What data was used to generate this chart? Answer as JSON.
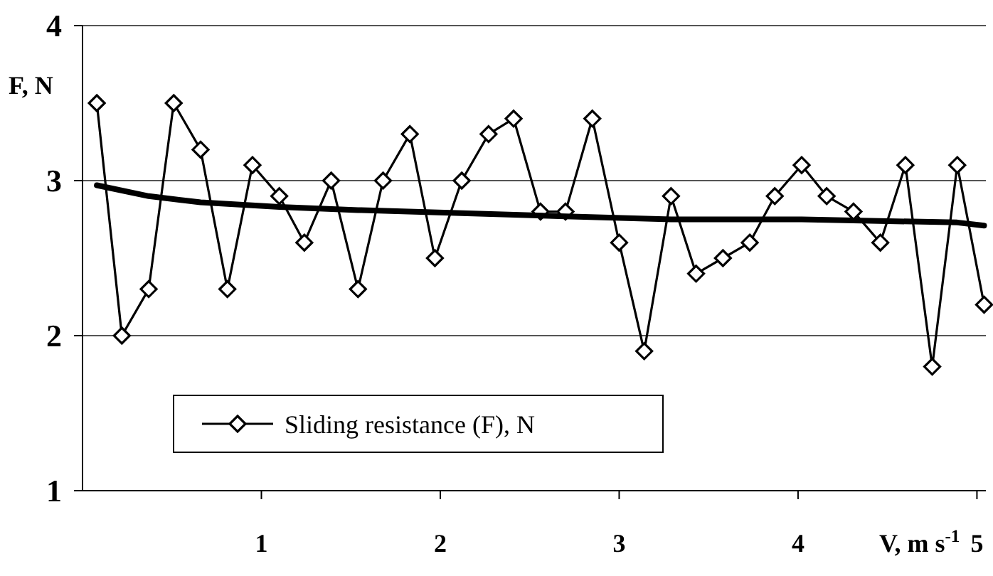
{
  "chart_data": {
    "type": "line",
    "ylabel": "F, N",
    "xlabel": "V, m s$^{-1}$",
    "xlim": [
      0,
      5.05
    ],
    "xticks": [
      1,
      2,
      3,
      4,
      5
    ],
    "ylim": [
      1,
      4
    ],
    "yticks": [
      1,
      2,
      3,
      4
    ],
    "grid": "y",
    "legend": "bottom left",
    "series": [
      {
        "name": "Sliding resistance (F), N",
        "color": "#000000",
        "marker": "diamond",
        "x": [
          0.08,
          0.22,
          0.37,
          0.51,
          0.66,
          0.81,
          0.95,
          1.1,
          1.24,
          1.39,
          1.54,
          1.68,
          1.83,
          1.97,
          2.12,
          2.27,
          2.41,
          2.56,
          2.7,
          2.85,
          3.0,
          3.14,
          3.29,
          3.43,
          3.58,
          3.73,
          3.87,
          4.02,
          4.16,
          4.31,
          4.46,
          4.6,
          4.75,
          4.89,
          5.04
        ],
        "values": [
          3.5,
          2.0,
          2.3,
          3.5,
          3.2,
          2.3,
          3.1,
          2.9,
          2.6,
          3.0,
          2.3,
          3.0,
          3.3,
          2.5,
          3.0,
          3.3,
          3.4,
          2.8,
          2.8,
          3.4,
          2.6,
          1.9,
          2.9,
          2.4,
          2.5,
          2.6,
          2.9,
          3.1,
          2.9,
          2.8,
          2.6,
          3.1,
          1.8,
          3.1,
          2.2
        ]
      },
      {
        "type": "line",
        "color": "#000000",
        "marker": "none",
        "x": [
          0.08,
          0.37,
          0.66,
          1.1,
          1.54,
          2.12,
          2.7,
          3.29,
          4.02,
          4.89,
          5.04
        ],
        "values": [
          2.97,
          2.9,
          2.86,
          2.83,
          2.81,
          2.79,
          2.77,
          2.75,
          2.75,
          2.73,
          2.71
        ]
      }
    ]
  }
}
